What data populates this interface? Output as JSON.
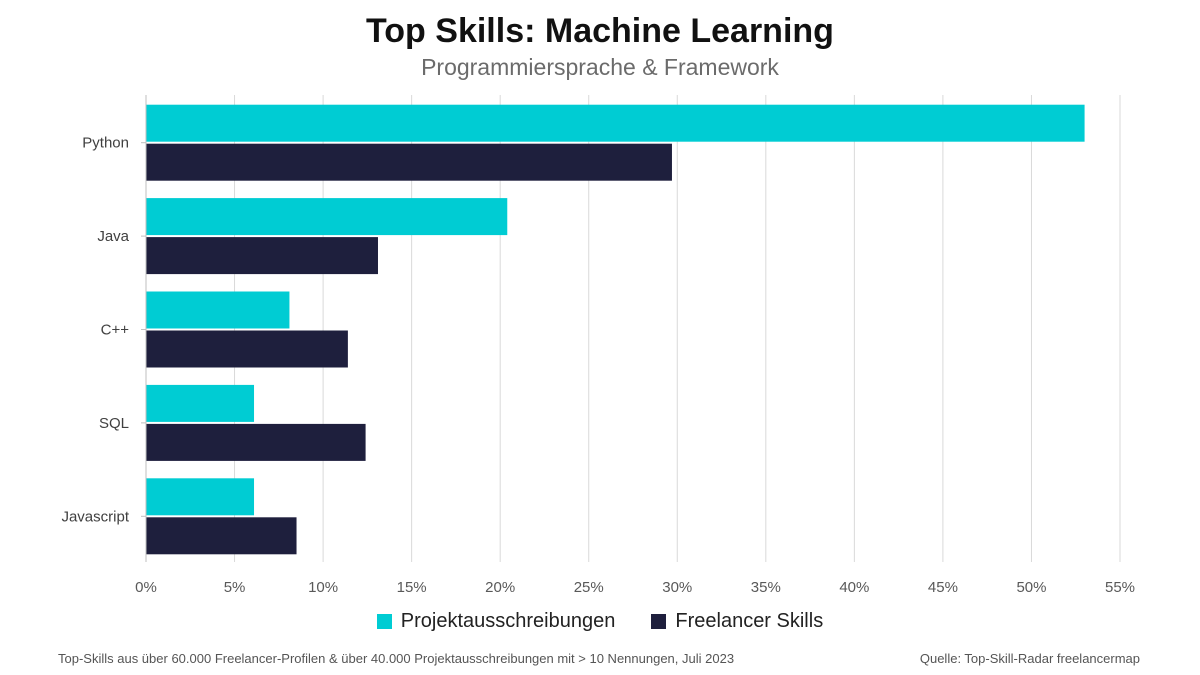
{
  "chart_data": {
    "type": "bar",
    "orientation": "horizontal",
    "title": "Top Skills: Machine Learning",
    "subtitle": "Programmiersprache & Framework",
    "categories": [
      "Python",
      "Java",
      "C++",
      "SQL",
      "Javascript"
    ],
    "series": [
      {
        "name": "Projektausschreibungen",
        "color": "#00ccd3",
        "values": [
          53.0,
          20.4,
          8.1,
          6.1,
          6.1
        ]
      },
      {
        "name": "Freelancer Skills",
        "color": "#1e1f3d",
        "values": [
          29.7,
          13.1,
          11.4,
          12.4,
          8.5
        ]
      }
    ],
    "xlim": [
      0,
      55
    ],
    "xticks": [
      0,
      5,
      10,
      15,
      20,
      25,
      30,
      35,
      40,
      45,
      50,
      55
    ],
    "xtick_labels": [
      "0%",
      "5%",
      "10%",
      "15%",
      "20%",
      "25%",
      "30%",
      "35%",
      "40%",
      "45%",
      "50%",
      "55%"
    ],
    "grid": true,
    "legend_position": "bottom-center"
  },
  "footer": {
    "note": "Top-Skills aus über 60.000 Freelancer-Profilen & über 40.000 Projektausschreibungen mit > 10 Nennungen, Juli 2023",
    "source": "Quelle: Top-Skill-Radar freelancermap"
  }
}
